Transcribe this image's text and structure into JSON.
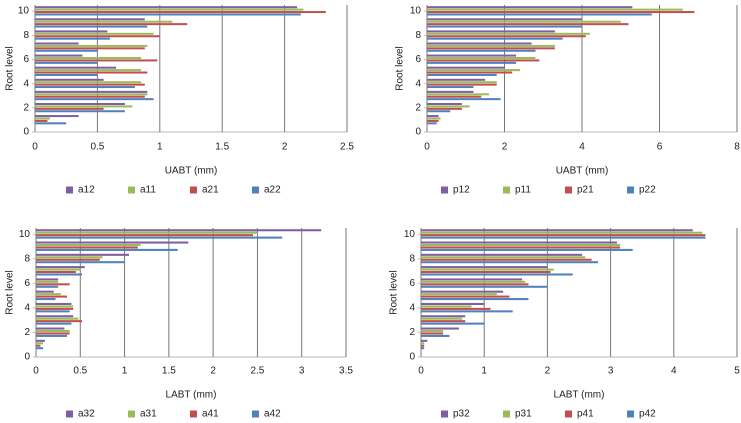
{
  "chart_data": [
    {
      "type": "bar",
      "orientation": "horizontal",
      "x_label": "UABT (mm)",
      "y_label": "Root level",
      "y": [
        1,
        2,
        3,
        4,
        5,
        6,
        7,
        8,
        9,
        10
      ],
      "xlim": [
        0,
        2.5
      ],
      "xticks": [
        0,
        0.5,
        1,
        1.5,
        2,
        2.5
      ],
      "ylim": [
        0,
        10.5
      ],
      "yticks": [
        0,
        2,
        4,
        6,
        8,
        10
      ],
      "grid": true,
      "legend": "bottom",
      "series": [
        {
          "name": "a12",
          "color": "#7e5fa0",
          "values": [
            0.35,
            0.72,
            0.9,
            0.55,
            0.65,
            0.38,
            0.35,
            0.58,
            0.88,
            2.1
          ]
        },
        {
          "name": "a11",
          "color": "#9bbb59",
          "values": [
            0.12,
            0.78,
            0.9,
            0.85,
            0.85,
            0.85,
            0.9,
            0.95,
            1.1,
            2.15
          ]
        },
        {
          "name": "a21",
          "color": "#c0504d",
          "values": [
            0.1,
            0.55,
            0.88,
            0.88,
            0.9,
            0.98,
            0.88,
            1.0,
            1.22,
            2.33
          ]
        },
        {
          "name": "a22",
          "color": "#4f81bd",
          "values": [
            0.25,
            0.72,
            0.95,
            0.8,
            0.5,
            0.5,
            0.5,
            0.6,
            0.9,
            2.13
          ]
        }
      ]
    },
    {
      "type": "bar",
      "orientation": "horizontal",
      "x_label": "UABT (mm)",
      "y_label": "Root level",
      "y": [
        1,
        2,
        3,
        4,
        5,
        6,
        7,
        8,
        9,
        10
      ],
      "xlim": [
        0,
        8
      ],
      "xticks": [
        0,
        2,
        4,
        6,
        8
      ],
      "ylim": [
        0,
        10.5
      ],
      "yticks": [
        0,
        2,
        4,
        6,
        8,
        10
      ],
      "grid": true,
      "legend": "bottom",
      "series": [
        {
          "name": "p12",
          "color": "#7e5fa0",
          "values": [
            0.3,
            0.9,
            1.2,
            1.5,
            2.0,
            2.3,
            2.7,
            3.3,
            4.0,
            5.3
          ]
        },
        {
          "name": "p11",
          "color": "#9bbb59",
          "values": [
            0.35,
            1.1,
            1.6,
            1.8,
            2.4,
            2.8,
            3.3,
            4.2,
            5.0,
            6.6
          ]
        },
        {
          "name": "p21",
          "color": "#c0504d",
          "values": [
            0.3,
            0.9,
            1.4,
            1.8,
            2.2,
            2.9,
            3.3,
            4.1,
            5.2,
            6.9
          ]
        },
        {
          "name": "p22",
          "color": "#4f81bd",
          "values": [
            0.25,
            0.6,
            1.9,
            1.2,
            1.8,
            2.3,
            2.8,
            3.5,
            4.0,
            5.8
          ]
        }
      ]
    },
    {
      "type": "bar",
      "orientation": "horizontal",
      "x_label": "LABT (mm)",
      "y_label": "Root level",
      "y": [
        1,
        2,
        3,
        4,
        5,
        6,
        7,
        8,
        9,
        10
      ],
      "xlim": [
        0,
        3.5
      ],
      "xticks": [
        0,
        0.5,
        1,
        1.5,
        2,
        2.5,
        3,
        3.5
      ],
      "ylim": [
        0,
        10.5
      ],
      "yticks": [
        0,
        2,
        4,
        6,
        8,
        10
      ],
      "grid": true,
      "legend": "bottom",
      "series": [
        {
          "name": "a32",
          "color": "#7e5fa0",
          "values": [
            0.1,
            0.32,
            0.42,
            0.4,
            0.2,
            0.25,
            0.55,
            1.05,
            1.72,
            3.22
          ]
        },
        {
          "name": "a31",
          "color": "#9bbb59",
          "values": [
            0.08,
            0.38,
            0.48,
            0.42,
            0.28,
            0.25,
            0.5,
            0.75,
            1.18,
            2.5
          ]
        },
        {
          "name": "a41",
          "color": "#c0504d",
          "values": [
            0.05,
            0.38,
            0.52,
            0.42,
            0.35,
            0.38,
            0.45,
            0.72,
            1.15,
            2.45
          ]
        },
        {
          "name": "a42",
          "color": "#4f81bd",
          "values": [
            0.08,
            0.35,
            0.4,
            0.38,
            0.22,
            0.25,
            0.52,
            1.0,
            1.6,
            2.78
          ]
        }
      ]
    },
    {
      "type": "bar",
      "orientation": "horizontal",
      "x_label": "LABT (mm)",
      "y_label": "Root level",
      "y": [
        1,
        2,
        3,
        4,
        5,
        6,
        7,
        8,
        9,
        10
      ],
      "xlim": [
        0,
        5
      ],
      "xticks": [
        0,
        1,
        2,
        3,
        4,
        5
      ],
      "ylim": [
        0,
        10.5
      ],
      "yticks": [
        0,
        2,
        4,
        6,
        8,
        10
      ],
      "grid": true,
      "legend": "bottom",
      "series": [
        {
          "name": "p32",
          "color": "#7e5fa0",
          "values": [
            0.1,
            0.6,
            0.7,
            1.0,
            1.3,
            1.6,
            2.0,
            2.55,
            3.1,
            4.3
          ]
        },
        {
          "name": "p31",
          "color": "#9bbb59",
          "values": [
            0.05,
            0.35,
            0.65,
            0.8,
            1.2,
            1.65,
            2.1,
            2.6,
            3.15,
            4.45
          ]
        },
        {
          "name": "p41",
          "color": "#c0504d",
          "values": [
            0.05,
            0.35,
            0.7,
            1.1,
            1.4,
            1.7,
            2.05,
            2.7,
            3.15,
            4.5
          ]
        },
        {
          "name": "p42",
          "color": "#4f81bd",
          "values": [
            0.05,
            0.45,
            1.0,
            1.45,
            1.7,
            2.0,
            2.4,
            2.8,
            3.35,
            4.5
          ]
        }
      ]
    }
  ]
}
